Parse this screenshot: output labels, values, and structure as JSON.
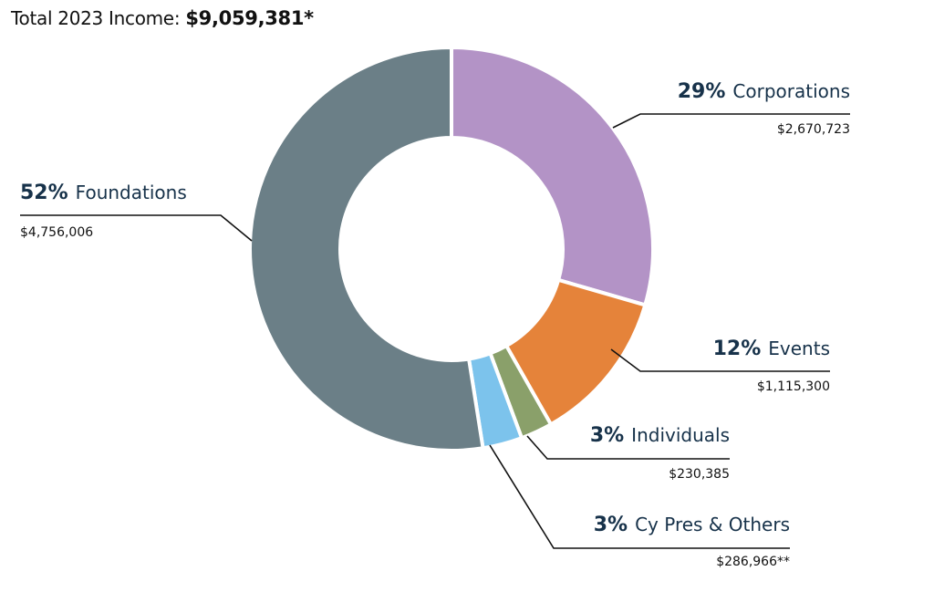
{
  "chart_data": {
    "type": "pie",
    "variant": "donut",
    "title_prefix": "Total 2023 Income:",
    "title_value": "$9,059,381*",
    "slices": [
      {
        "name": "Corporations",
        "percent_label": "29%",
        "amount_label": "$2,670,723",
        "value": 2670723,
        "color": "#b393c6"
      },
      {
        "name": "Events",
        "percent_label": "12%",
        "amount_label": "$1,115,300",
        "value": 1115300,
        "color": "#e5833a"
      },
      {
        "name": "Individuals",
        "percent_label": "3%",
        "amount_label": "$230,385",
        "value": 230385,
        "color": "#8aa06a"
      },
      {
        "name": "Cy Pres & Others",
        "percent_label": "3%",
        "amount_label": "$286,966**",
        "value": 286966,
        "color": "#7cc3ec"
      },
      {
        "name": "Foundations",
        "percent_label": "52%",
        "amount_label": "$4,756,006",
        "value": 4756006,
        "color": "#6b7f87"
      }
    ]
  }
}
